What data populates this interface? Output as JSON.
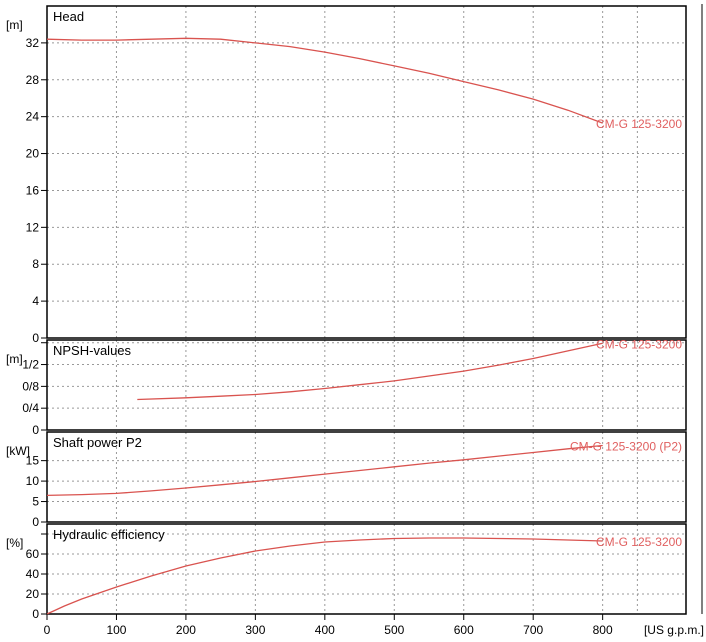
{
  "chart_data": {
    "type": "line",
    "xaxis": {
      "unit": "[US g.p.m.]",
      "range": [
        0,
        920
      ],
      "ticks": [
        0,
        100,
        200,
        300,
        400,
        500,
        600,
        700,
        800
      ]
    },
    "colors": {
      "curve": "#d9534f",
      "label": "#e06060",
      "grid": "#999999",
      "frame": "#000000"
    },
    "panels": [
      {
        "id": "head",
        "title": "Head",
        "unit": "[m]",
        "ylim": [
          0,
          36
        ],
        "yticks": [
          {
            "v": 0,
            "label": "0"
          },
          {
            "v": 4,
            "label": "4"
          },
          {
            "v": 8,
            "label": "8"
          },
          {
            "v": 12,
            "label": "12"
          },
          {
            "v": 16,
            "label": "16"
          },
          {
            "v": 20,
            "label": "20"
          },
          {
            "v": 24,
            "label": "24"
          },
          {
            "v": 28,
            "label": "28"
          },
          {
            "v": 32,
            "label": "32"
          }
        ],
        "series": [
          {
            "name": "CM-G 125-3200",
            "points": [
              [
                0,
                32.4
              ],
              [
                50,
                32.3
              ],
              [
                100,
                32.3
              ],
              [
                150,
                32.4
              ],
              [
                200,
                32.5
              ],
              [
                250,
                32.4
              ],
              [
                300,
                32.0
              ],
              [
                350,
                31.6
              ],
              [
                400,
                31.0
              ],
              [
                450,
                30.3
              ],
              [
                500,
                29.5
              ],
              [
                550,
                28.7
              ],
              [
                600,
                27.8
              ],
              [
                650,
                26.9
              ],
              [
                700,
                25.9
              ],
              [
                750,
                24.7
              ],
              [
                800,
                23.3
              ]
            ]
          }
        ]
      },
      {
        "id": "npsh",
        "title": "NPSH-values",
        "unit": "[m]",
        "ylim": [
          0,
          1.65
        ],
        "yticks": [
          {
            "v": 0,
            "label": "0"
          },
          {
            "v": 0.4,
            "label": "0/4"
          },
          {
            "v": 0.8,
            "label": "0/8"
          },
          {
            "v": 1.2,
            "label": "1/2"
          },
          {
            "v": 1.6,
            "label": ""
          }
        ],
        "series": [
          {
            "name": "CM-G 125-3200",
            "points": [
              [
                130,
                0.56
              ],
              [
                200,
                0.59
              ],
              [
                250,
                0.62
              ],
              [
                300,
                0.65
              ],
              [
                350,
                0.7
              ],
              [
                400,
                0.76
              ],
              [
                450,
                0.83
              ],
              [
                500,
                0.9
              ],
              [
                550,
                0.99
              ],
              [
                600,
                1.08
              ],
              [
                650,
                1.19
              ],
              [
                700,
                1.31
              ],
              [
                750,
                1.45
              ],
              [
                800,
                1.59
              ]
            ]
          }
        ]
      },
      {
        "id": "power",
        "title": "Shaft power P2",
        "unit": "[kW]",
        "ylim": [
          0,
          22
        ],
        "yticks": [
          {
            "v": 0,
            "label": "0"
          },
          {
            "v": 5,
            "label": "5"
          },
          {
            "v": 10,
            "label": "10"
          },
          {
            "v": 15,
            "label": "15"
          }
        ],
        "series": [
          {
            "name": "CM-G 125-3200 (P2)",
            "points": [
              [
                0,
                6.5
              ],
              [
                50,
                6.7
              ],
              [
                100,
                7.0
              ],
              [
                150,
                7.6
              ],
              [
                200,
                8.3
              ],
              [
                250,
                9.1
              ],
              [
                300,
                9.9
              ],
              [
                350,
                10.8
              ],
              [
                400,
                11.7
              ],
              [
                450,
                12.6
              ],
              [
                500,
                13.5
              ],
              [
                550,
                14.4
              ],
              [
                600,
                15.2
              ],
              [
                650,
                16.1
              ],
              [
                700,
                17.0
              ],
              [
                750,
                17.9
              ],
              [
                800,
                18.7
              ]
            ]
          }
        ]
      },
      {
        "id": "efficiency",
        "title": "Hydraulic efficiency",
        "unit": "[%]",
        "ylim": [
          0,
          90
        ],
        "yticks": [
          {
            "v": 0,
            "label": "0"
          },
          {
            "v": 20,
            "label": "20"
          },
          {
            "v": 40,
            "label": "40"
          },
          {
            "v": 60,
            "label": "60"
          },
          {
            "v": 80,
            "label": ""
          }
        ],
        "series": [
          {
            "name": "CM-G 125-3200",
            "points": [
              [
                0,
                0
              ],
              [
                25,
                8
              ],
              [
                50,
                15
              ],
              [
                100,
                27
              ],
              [
                150,
                38
              ],
              [
                200,
                48
              ],
              [
                250,
                56
              ],
              [
                300,
                63
              ],
              [
                350,
                68
              ],
              [
                400,
                72
              ],
              [
                450,
                74
              ],
              [
                500,
                75.5
              ],
              [
                550,
                76
              ],
              [
                600,
                76
              ],
              [
                650,
                75.5
              ],
              [
                700,
                75
              ],
              [
                750,
                74
              ],
              [
                800,
                73
              ]
            ]
          }
        ]
      }
    ]
  }
}
